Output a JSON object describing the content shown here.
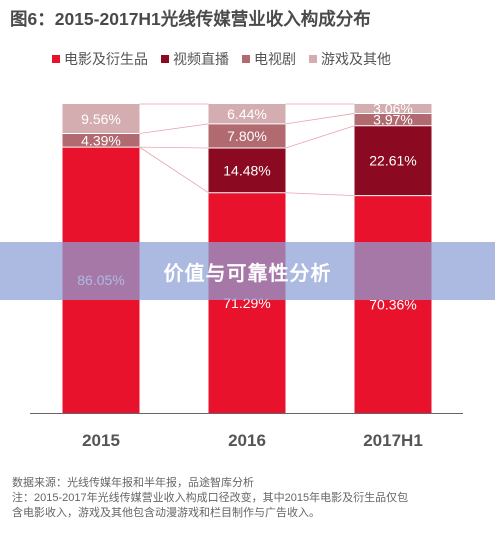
{
  "chart_data": {
    "type": "bar",
    "stacked": true,
    "title": "图6：2015-2017H1光线传媒营业收入构成分布",
    "categories": [
      "2015",
      "2016",
      "2017H1"
    ],
    "series": [
      {
        "name": "电影及衍生品",
        "color": "#e8122d",
        "values": [
          86.05,
          71.29,
          70.36
        ],
        "labels": [
          "86.05%",
          "71.29%",
          "70.36%"
        ]
      },
      {
        "name": "视频直播",
        "color": "#8b0a22",
        "values": [
          0,
          14.48,
          22.61
        ],
        "labels": [
          "",
          "14.48%",
          "22.61%"
        ]
      },
      {
        "name": "电视剧",
        "color": "#b06a70",
        "values": [
          4.39,
          7.8,
          3.97
        ],
        "labels": [
          "4.39%",
          "7.80%",
          "3.97%"
        ]
      },
      {
        "name": "游戏及其他",
        "color": "#d4adb0",
        "values": [
          9.56,
          6.44,
          3.06
        ],
        "labels": [
          "9.56%",
          "6.44%",
          "3.06%"
        ]
      }
    ],
    "ylim": [
      0,
      100
    ],
    "legend_position": "top",
    "grid": false
  },
  "overlay": {
    "text": "价值与可靠性分析"
  },
  "notes": {
    "source": "数据来源：光线传媒年报和半年报，品途智库分析",
    "note_line1": "注：2015-2017年光线传媒营业收入构成口径改变，其中2015年电影及衍生品仅包",
    "note_line2": "含电影收入，游戏及其他包含动漫游戏和栏目制作与广告收入。"
  }
}
